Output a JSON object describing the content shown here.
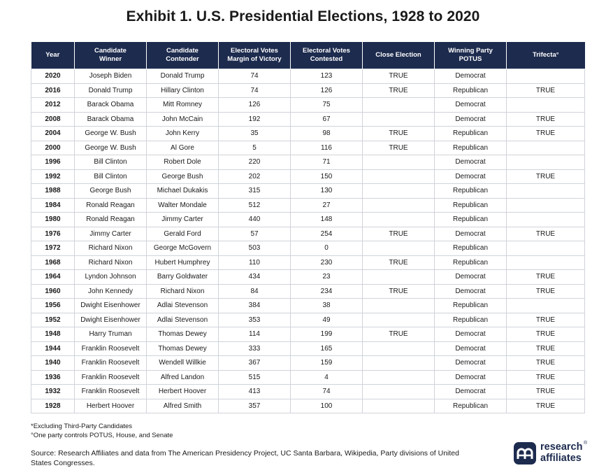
{
  "title": "Exhibit 1. U.S. Presidential Elections, 1928 to 2020",
  "table": {
    "headers": [
      [
        "Year"
      ],
      [
        "Candidate",
        "Winner"
      ],
      [
        "Candidate",
        "Contender"
      ],
      [
        "Electoral Votes",
        "Margin of Victory"
      ],
      [
        "Electoral Votes",
        "Contested"
      ],
      [
        "Close Election"
      ],
      [
        "Winning Party",
        "POTUS"
      ],
      [
        "Trifecta°"
      ]
    ],
    "rows": [
      [
        "2020",
        "Joseph Biden",
        "Donald Trump",
        "74",
        "123",
        "TRUE",
        "Democrat",
        ""
      ],
      [
        "2016",
        "Donald Trump",
        "Hillary Clinton",
        "74",
        "126",
        "TRUE",
        "Republican",
        "TRUE"
      ],
      [
        "2012",
        "Barack Obama",
        "Mitt Romney",
        "126",
        "75",
        "",
        "Democrat",
        ""
      ],
      [
        "2008",
        "Barack Obama",
        "John McCain",
        "192",
        "67",
        "",
        "Democrat",
        "TRUE"
      ],
      [
        "2004",
        "George W. Bush",
        "John Kerry",
        "35",
        "98",
        "TRUE",
        "Republican",
        "TRUE"
      ],
      [
        "2000",
        "George W. Bush",
        "Al Gore",
        "5",
        "116",
        "TRUE",
        "Republican",
        ""
      ],
      [
        "1996",
        "Bill Clinton",
        "Robert Dole",
        "220",
        "71",
        "",
        "Democrat",
        ""
      ],
      [
        "1992",
        "Bill Clinton",
        "George Bush",
        "202",
        "150",
        "",
        "Democrat",
        "TRUE"
      ],
      [
        "1988",
        "George Bush",
        "Michael Dukakis",
        "315",
        "130",
        "",
        "Republican",
        ""
      ],
      [
        "1984",
        "Ronald Reagan",
        "Walter Mondale",
        "512",
        "27",
        "",
        "Republican",
        ""
      ],
      [
        "1980",
        "Ronald Reagan",
        "Jimmy Carter",
        "440",
        "148",
        "",
        "Republican",
        ""
      ],
      [
        "1976",
        "Jimmy Carter",
        "Gerald Ford",
        "57",
        "254",
        "TRUE",
        "Democrat",
        "TRUE"
      ],
      [
        "1972",
        "Richard Nixon",
        "George McGovern",
        "503",
        "0",
        "",
        "Republican",
        ""
      ],
      [
        "1968",
        "Richard Nixon",
        "Hubert Humphrey",
        "110",
        "230",
        "TRUE",
        "Republican",
        ""
      ],
      [
        "1964",
        "Lyndon Johnson",
        "Barry Goldwater",
        "434",
        "23",
        "",
        "Democrat",
        "TRUE"
      ],
      [
        "1960",
        "John Kennedy",
        "Richard Nixon",
        "84",
        "234",
        "TRUE",
        "Democrat",
        "TRUE"
      ],
      [
        "1956",
        "Dwight Eisenhower",
        "Adlai Stevenson",
        "384",
        "38",
        "",
        "Republican",
        ""
      ],
      [
        "1952",
        "Dwight Eisenhower",
        "Adlai Stevenson",
        "353",
        "49",
        "",
        "Republican",
        "TRUE"
      ],
      [
        "1948",
        "Harry Truman",
        "Thomas Dewey",
        "114",
        "199",
        "TRUE",
        "Democrat",
        "TRUE"
      ],
      [
        "1944",
        "Franklin Roosevelt",
        "Thomas Dewey",
        "333",
        "165",
        "",
        "Democrat",
        "TRUE"
      ],
      [
        "1940",
        "Franklin Roosevelt",
        "Wendell Willkie",
        "367",
        "159",
        "",
        "Democrat",
        "TRUE"
      ],
      [
        "1936",
        "Franklin Roosevelt",
        "Alfred Landon",
        "515",
        "4",
        "",
        "Democrat",
        "TRUE"
      ],
      [
        "1932",
        "Franklin Roosevelt",
        "Herbert Hoover",
        "413",
        "74",
        "",
        "Democrat",
        "TRUE"
      ],
      [
        "1928",
        "Herbert Hoover",
        "Alfred Smith",
        "357",
        "100",
        "",
        "Republican",
        "TRUE"
      ]
    ]
  },
  "notes": [
    "*Excluding Third-Party Candidates",
    "°One party controls POTUS, House, and Senate"
  ],
  "source": "Source: Research Affiliates and data from The American Presidency Project, UC Santa Barbara, Wikipedia, Party divisions of United States Congresses.",
  "logo": {
    "line1": "research",
    "line2": "affiliates",
    "reg": "®",
    "color": "#1d2b4e"
  }
}
